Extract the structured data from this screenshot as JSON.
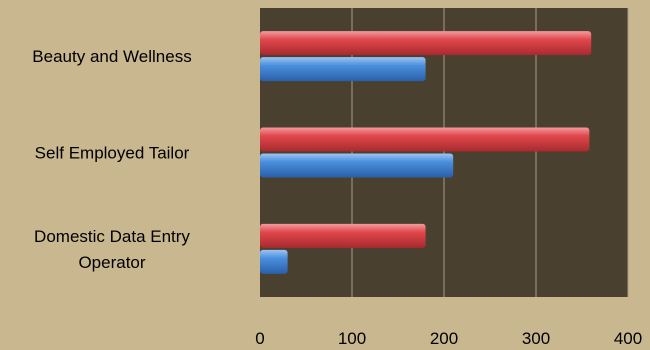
{
  "colors": {
    "page_background": "#c8b78f",
    "plot_background": "#4a4030",
    "gridline": "#a89c80",
    "series_red": "#e0474c",
    "series_blue": "#4a8fdd"
  },
  "chart_data": {
    "type": "bar",
    "orientation": "horizontal",
    "title": "",
    "xlabel": "",
    "ylabel": "",
    "categories": [
      [
        "Beauty and Wellness"
      ],
      [
        "Self Employed Tailor"
      ],
      [
        "Domestic Data Entry",
        "Operator"
      ]
    ],
    "series": [
      {
        "color": "#e0474c",
        "values": [
          360,
          358,
          180
        ]
      },
      {
        "color": "#4a8fdd",
        "values": [
          180,
          210,
          30
        ]
      }
    ],
    "xlim": [
      0,
      400
    ],
    "xticks": [
      0,
      100,
      200,
      300,
      400
    ],
    "grid": true,
    "legend": "none"
  }
}
